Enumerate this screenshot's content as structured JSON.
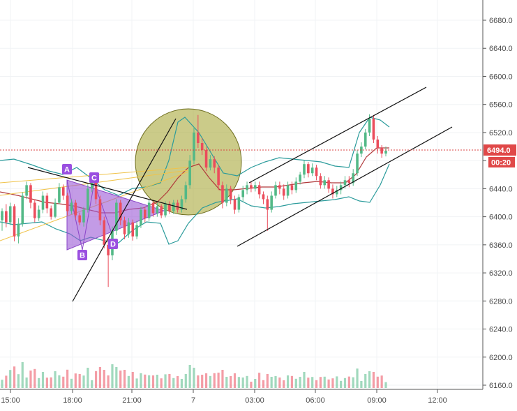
{
  "chart_data": {
    "type": "candlestick",
    "price_axis": {
      "ticks": [
        "6680.0",
        "6640.0",
        "6600.0",
        "6560.0",
        "6520.0",
        "6480.0",
        "6440.0",
        "6400.0",
        "6360.0",
        "6320.0",
        "6280.0",
        "6240.0",
        "6200.0",
        "6160.0"
      ],
      "min": 6160,
      "max": 6700
    },
    "time_axis": {
      "ticks": [
        "15:00",
        "18:00",
        "21:00",
        "7",
        "03:00",
        "06:00",
        "09:00",
        "12:00"
      ]
    },
    "last_price": {
      "value": "6494.0",
      "countdown": "00:20"
    },
    "pattern_points": [
      "A",
      "B",
      "C",
      "D"
    ],
    "candles": [
      [
        6395,
        6408,
        6380,
        6412
      ],
      [
        6408,
        6392,
        6385,
        6418
      ],
      [
        6392,
        6415,
        6388,
        6420
      ],
      [
        6415,
        6372,
        6365,
        6418
      ],
      [
        6372,
        6390,
        6362,
        6398
      ],
      [
        6390,
        6430,
        6386,
        6435
      ],
      [
        6430,
        6445,
        6425,
        6450
      ],
      [
        6445,
        6420,
        6412,
        6448
      ],
      [
        6420,
        6398,
        6392,
        6425
      ],
      [
        6398,
        6410,
        6394,
        6416
      ],
      [
        6410,
        6430,
        6405,
        6436
      ],
      [
        6430,
        6412,
        6405,
        6434
      ],
      [
        6412,
        6400,
        6396,
        6416
      ],
      [
        6400,
        6420,
        6398,
        6426
      ],
      [
        6420,
        6442,
        6418,
        6448
      ],
      [
        6442,
        6430,
        6424,
        6446
      ],
      [
        6430,
        6408,
        6402,
        6434
      ],
      [
        6408,
        6420,
        6404,
        6425
      ],
      [
        6420,
        6402,
        6396,
        6424
      ],
      [
        6402,
        6392,
        6388,
        6406
      ],
      [
        6392,
        6410,
        6386,
        6414
      ],
      [
        6410,
        6440,
        6406,
        6446
      ],
      [
        6440,
        6452,
        6435,
        6456
      ],
      [
        6452,
        6425,
        6418,
        6455
      ],
      [
        6425,
        6395,
        6388,
        6430
      ],
      [
        6395,
        6360,
        6355,
        6400
      ],
      [
        6360,
        6345,
        6300,
        6368
      ],
      [
        6345,
        6380,
        6338,
        6386
      ],
      [
        6380,
        6420,
        6374,
        6425
      ],
      [
        6420,
        6395,
        6388,
        6424
      ],
      [
        6395,
        6375,
        6368,
        6400
      ],
      [
        6375,
        6392,
        6370,
        6398
      ],
      [
        6392,
        6372,
        6366,
        6396
      ],
      [
        6372,
        6388,
        6368,
        6394
      ],
      [
        6388,
        6410,
        6384,
        6414
      ],
      [
        6410,
        6398,
        6392,
        6414
      ],
      [
        6398,
        6420,
        6394,
        6424
      ],
      [
        6420,
        6405,
        6400,
        6424
      ],
      [
        6405,
        6415,
        6400,
        6420
      ],
      [
        6415,
        6402,
        6398,
        6418
      ],
      [
        6402,
        6418,
        6399,
        6422
      ],
      [
        6418,
        6408,
        6404,
        6422
      ],
      [
        6408,
        6420,
        6404,
        6424
      ],
      [
        6420,
        6410,
        6406,
        6424
      ],
      [
        6410,
        6425,
        6406,
        6430
      ],
      [
        6425,
        6445,
        6420,
        6450
      ],
      [
        6445,
        6480,
        6440,
        6488
      ],
      [
        6480,
        6520,
        6475,
        6528
      ],
      [
        6520,
        6505,
        6498,
        6545
      ],
      [
        6505,
        6495,
        6488,
        6512
      ],
      [
        6495,
        6470,
        6465,
        6500
      ],
      [
        6470,
        6482,
        6466,
        6488
      ],
      [
        6482,
        6470,
        6462,
        6486
      ],
      [
        6470,
        6445,
        6438,
        6474
      ],
      [
        6445,
        6420,
        6412,
        6450
      ],
      [
        6420,
        6440,
        6415,
        6446
      ],
      [
        6440,
        6425,
        6418,
        6444
      ],
      [
        6425,
        6410,
        6404,
        6430
      ],
      [
        6410,
        6428,
        6406,
        6432
      ],
      [
        6428,
        6438,
        6422,
        6444
      ],
      [
        6438,
        6445,
        6432,
        6450
      ],
      [
        6445,
        6440,
        6435,
        6450
      ],
      [
        6440,
        6445,
        6436,
        6450
      ],
      [
        6445,
        6432,
        6426,
        6450
      ],
      [
        6432,
        6425,
        6418,
        6436
      ],
      [
        6425,
        6410,
        6380,
        6430
      ],
      [
        6410,
        6430,
        6406,
        6436
      ],
      [
        6430,
        6445,
        6426,
        6450
      ],
      [
        6445,
        6440,
        6432,
        6450
      ],
      [
        6440,
        6430,
        6424,
        6446
      ],
      [
        6430,
        6445,
        6426,
        6450
      ],
      [
        6445,
        6438,
        6432,
        6450
      ],
      [
        6438,
        6450,
        6434,
        6456
      ],
      [
        6450,
        6460,
        6446,
        6464
      ],
      [
        6460,
        6475,
        6455,
        6480
      ],
      [
        6475,
        6462,
        6456,
        6478
      ],
      [
        6462,
        6470,
        6458,
        6476
      ],
      [
        6470,
        6458,
        6452,
        6474
      ],
      [
        6458,
        6445,
        6440,
        6462
      ],
      [
        6445,
        6452,
        6440,
        6458
      ],
      [
        6452,
        6440,
        6434,
        6456
      ],
      [
        6440,
        6432,
        6426,
        6446
      ],
      [
        6432,
        6438,
        6428,
        6444
      ],
      [
        6438,
        6445,
        6432,
        6450
      ],
      [
        6445,
        6452,
        6440,
        6458
      ],
      [
        6452,
        6448,
        6442,
        6458
      ],
      [
        6448,
        6462,
        6444,
        6468
      ],
      [
        6462,
        6490,
        6458,
        6495
      ],
      [
        6490,
        6500,
        6485,
        6506
      ],
      [
        6500,
        6520,
        6496,
        6525
      ],
      [
        6520,
        6540,
        6515,
        6546
      ],
      [
        6540,
        6510,
        6505,
        6545
      ],
      [
        6510,
        6498,
        6490,
        6515
      ],
      [
        6498,
        6490,
        6484,
        6502
      ],
      [
        6490,
        6494,
        6486,
        6500
      ]
    ]
  }
}
